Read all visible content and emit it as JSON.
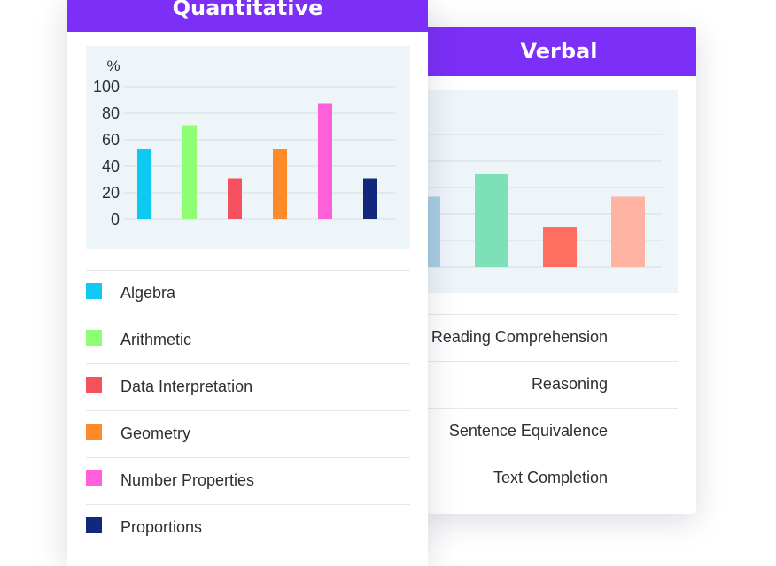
{
  "verbal": {
    "title": "Verbal",
    "legend": [
      {
        "label": "Reading Comprehension",
        "color": "#a9cfe4"
      },
      {
        "label": "Reasoning",
        "color": "#7ee0b8"
      },
      {
        "label": "Sentence Equivalence",
        "color": "#ff6f61"
      },
      {
        "label": "Text Completion",
        "color": "#ffb3a2"
      }
    ]
  },
  "quantitative": {
    "title": "Quantitative",
    "legend": [
      {
        "label": "Algebra",
        "color": "#0ec9f2"
      },
      {
        "label": "Arithmetic",
        "color": "#8eff73"
      },
      {
        "label": "Data Interpretation",
        "color": "#f5505f"
      },
      {
        "label": "Geometry",
        "color": "#ff8a2a"
      },
      {
        "label": "Number Properties",
        "color": "#ff5fd9"
      },
      {
        "label": "Proportions",
        "color": "#11287c"
      }
    ]
  },
  "chart_data": [
    {
      "type": "bar",
      "title": "",
      "ylabel": "%",
      "ylim": [
        0,
        100
      ],
      "yticks": [
        0,
        20,
        40,
        60,
        80,
        100
      ],
      "grid": true,
      "categories": [
        "Algebra",
        "Arithmetic",
        "Data Interpretation",
        "Geometry",
        "Number Properties",
        "Proportions"
      ],
      "values": [
        53,
        71,
        31,
        53,
        87,
        31
      ],
      "colors": [
        "#0ec9f2",
        "#8eff73",
        "#f5505f",
        "#ff8a2a",
        "#ff5fd9",
        "#11287c"
      ]
    },
    {
      "type": "bar",
      "title": "",
      "ylim": [
        0,
        100
      ],
      "grid": true,
      "categories": [
        "Reading Comprehension",
        "Reasoning",
        "Sentence Equivalence",
        "Text Completion"
      ],
      "values": [
        53,
        70,
        30,
        53
      ],
      "colors": [
        "#a9cfe4",
        "#7ee0b8",
        "#ff6f61",
        "#ffb3a2"
      ]
    }
  ]
}
